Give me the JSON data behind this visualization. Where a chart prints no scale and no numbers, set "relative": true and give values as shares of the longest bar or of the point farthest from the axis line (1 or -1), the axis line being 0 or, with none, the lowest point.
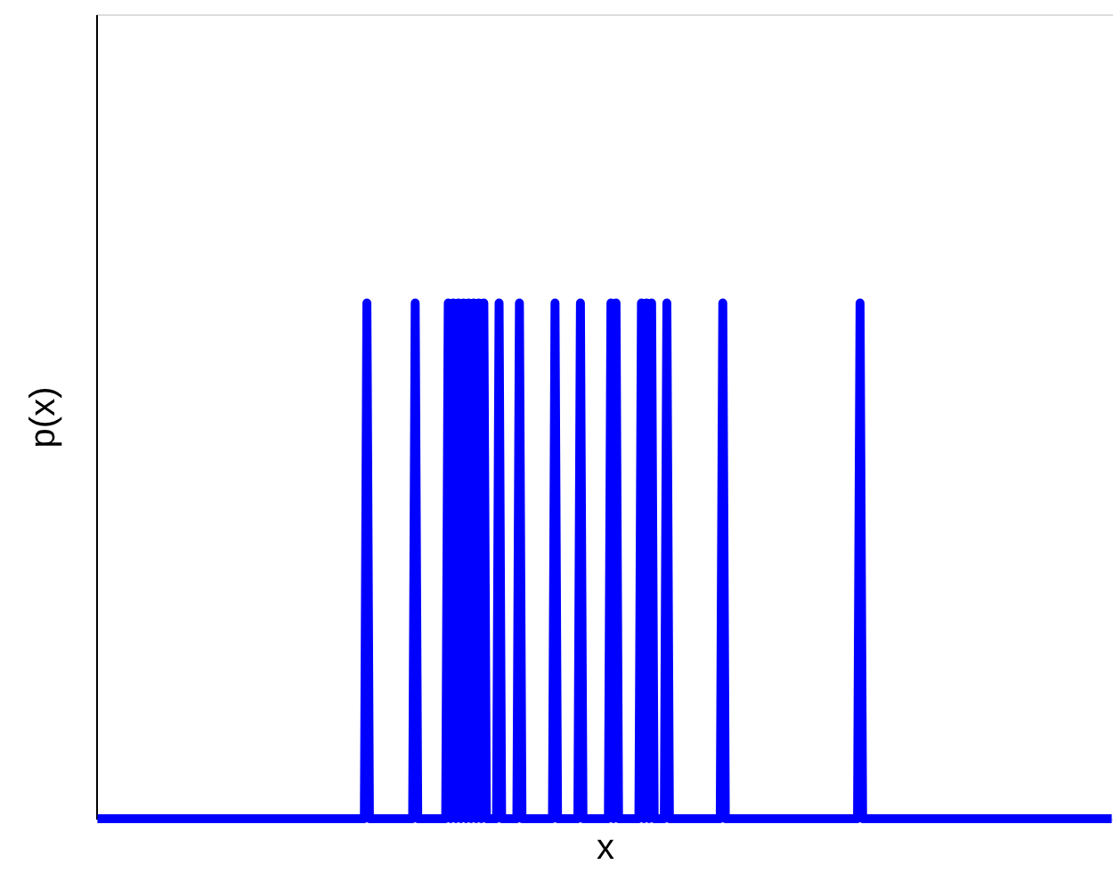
{
  "chart_data": {
    "type": "line",
    "relative": true,
    "xlabel": "x",
    "ylabel": "p(x)",
    "grid": false,
    "marker": "none",
    "line_style": "solid",
    "categories": [
      null,
      null,
      null,
      null,
      null,
      null,
      null,
      null,
      null,
      null,
      null,
      null,
      null,
      null,
      null,
      null,
      null,
      null,
      null,
      null,
      null,
      null,
      null,
      null,
      null,
      null,
      null,
      null,
      null,
      null,
      null,
      null,
      null,
      null,
      null,
      null,
      null,
      null,
      null,
      null,
      null,
      null,
      null,
      null,
      null,
      null,
      null,
      null,
      null,
      null,
      null,
      null,
      null,
      null,
      null,
      null,
      null,
      null,
      null,
      null,
      null,
      null,
      null,
      null,
      null,
      null,
      null,
      null,
      null,
      null,
      null,
      null,
      null,
      null,
      null,
      null,
      null,
      null,
      null,
      null,
      null,
      null,
      null,
      null,
      null,
      null,
      null,
      null,
      null,
      null,
      null,
      null,
      null,
      null,
      null,
      null,
      null,
      null,
      null,
      null,
      null,
      null,
      null,
      null,
      null,
      null,
      null,
      null,
      null,
      null,
      null,
      null,
      null,
      null,
      null,
      null,
      null,
      null,
      null,
      null,
      null,
      null,
      null,
      null,
      null,
      null,
      null,
      null,
      null,
      null,
      null,
      null,
      null,
      null,
      null,
      null,
      null,
      null,
      null,
      null,
      null,
      null,
      null,
      null,
      null,
      null,
      null,
      null,
      null,
      null,
      null,
      null,
      null,
      null,
      null,
      null,
      null,
      null,
      null,
      null,
      null,
      null,
      null,
      null,
      null,
      null,
      null,
      null,
      null,
      null,
      null,
      null,
      null,
      null,
      null,
      null,
      null,
      null,
      null,
      null,
      null,
      null,
      null,
      null,
      null,
      null,
      null,
      null,
      null,
      null,
      null,
      null,
      null,
      null,
      null,
      null,
      null,
      null,
      null,
      null,
      null,
      null,
      null,
      null,
      null,
      null,
      null,
      null,
      null,
      null,
      null,
      null,
      null,
      null,
      null,
      null,
      null,
      null,
      null,
      null,
      null,
      null,
      null,
      null,
      null,
      null,
      null,
      null,
      null,
      null,
      null,
      null,
      null,
      null,
      null,
      null,
      null,
      null,
      null,
      null,
      null,
      null,
      null,
      null,
      null,
      null,
      null,
      null,
      null,
      null,
      null,
      null,
      null,
      null,
      null,
      null,
      null,
      null,
      null,
      null,
      null,
      null,
      null,
      null,
      null,
      null,
      null,
      null,
      null,
      null,
      null,
      null,
      null,
      null,
      null,
      null,
      null,
      null,
      null,
      null,
      null,
      null,
      null,
      null,
      null,
      null,
      null,
      null,
      null,
      null,
      null,
      null,
      null,
      null,
      null,
      null,
      null,
      null,
      null,
      null,
      null,
      null,
      null,
      null,
      null,
      null,
      null,
      null,
      null,
      null,
      null,
      null,
      null,
      null,
      null,
      null,
      null,
      null,
      null,
      null,
      null,
      null,
      null,
      null,
      null,
      null,
      null,
      null,
      null,
      null,
      null,
      null,
      null,
      null,
      null,
      null,
      null,
      null,
      null,
      null,
      null,
      null,
      null,
      null,
      null,
      null,
      null,
      null,
      null,
      null,
      null,
      null,
      null,
      null,
      null,
      null,
      null,
      null,
      null,
      null,
      null,
      null,
      null,
      null,
      null,
      null,
      null,
      null,
      null,
      null,
      null,
      null,
      null,
      null,
      null,
      null,
      null,
      null,
      null,
      null,
      null,
      null,
      null,
      null,
      null,
      null,
      null,
      null,
      null,
      null,
      null,
      null,
      null,
      null,
      null,
      null,
      null,
      null,
      null,
      null
    ],
    "series": [
      {
        "color": "#0000ff",
        "values": [
          0,
          0,
          0,
          0,
          0,
          0,
          0,
          0,
          0,
          0,
          0,
          0,
          0,
          0,
          0,
          0,
          0,
          0,
          0,
          0,
          0,
          0,
          0,
          0,
          0,
          0,
          0,
          0,
          0,
          0,
          0,
          0,
          0,
          0,
          0,
          0,
          0,
          0,
          0,
          0,
          0,
          0,
          0,
          0,
          0,
          0,
          0,
          0,
          0,
          0,
          0,
          0,
          0,
          0,
          0,
          0,
          0,
          0,
          0,
          0,
          0,
          0,
          0,
          0,
          0,
          0,
          0,
          0,
          0,
          0,
          0,
          0,
          0,
          0,
          0,
          0,
          0,
          0,
          0,
          0,
          0,
          0,
          0,
          0,
          0,
          0,
          0,
          0,
          0,
          0,
          0,
          0,
          0,
          0,
          0,
          0,
          0,
          0,
          0,
          0,
          0,
          0,
          0,
          0,
          0,
          0,
          1,
          0,
          0,
          0,
          0,
          0,
          0,
          0,
          0,
          0,
          0,
          0,
          0,
          0,
          0,
          0,
          0,
          0,
          0,
          1,
          0,
          0,
          0,
          0,
          0,
          0,
          0,
          0,
          0,
          0,
          0,
          0,
          1,
          0,
          1,
          0,
          1,
          0,
          1,
          0,
          1,
          0,
          1,
          0,
          1,
          0,
          1,
          0,
          0,
          0,
          0,
          0,
          1,
          0,
          0,
          0,
          0,
          0,
          0,
          0,
          1,
          0,
          0,
          0,
          0,
          0,
          0,
          0,
          0,
          0,
          0,
          0,
          0,
          0,
          1,
          0,
          0,
          0,
          0,
          0,
          0,
          0,
          0,
          0,
          1,
          0,
          0,
          0,
          0,
          0,
          0,
          0,
          0,
          0,
          0,
          0,
          1,
          0,
          1,
          0,
          0,
          0,
          0,
          0,
          0,
          0,
          0,
          0,
          1,
          0,
          1,
          0,
          1,
          0,
          0,
          0,
          0,
          0,
          1,
          0,
          0,
          0,
          0,
          0,
          0,
          0,
          0,
          0,
          0,
          0,
          0,
          0,
          0,
          0,
          0,
          0,
          0,
          0,
          0,
          0,
          1,
          0,
          0,
          0,
          0,
          0,
          0,
          0,
          0,
          0,
          0,
          0,
          0,
          0,
          0,
          0,
          0,
          0,
          0,
          0,
          0,
          0,
          0,
          0,
          0,
          0,
          0,
          0,
          0,
          0,
          0,
          0,
          0,
          0,
          0,
          0,
          0,
          0,
          0,
          0,
          0,
          0,
          0,
          0,
          0,
          0,
          0,
          0,
          0,
          0,
          0,
          0,
          0,
          0,
          1,
          0,
          0,
          0,
          0,
          0,
          0,
          0,
          0,
          0,
          0,
          0,
          0,
          0,
          0,
          0,
          0,
          0,
          0,
          0,
          0,
          0,
          0,
          0,
          0,
          0,
          0,
          0,
          0,
          0,
          0,
          0,
          0,
          0,
          0,
          0,
          0,
          0,
          0,
          0,
          0,
          0,
          0,
          0,
          0,
          0,
          0,
          0,
          0,
          0,
          0,
          0,
          0,
          0,
          0,
          0,
          0,
          0,
          0,
          0,
          0,
          0,
          0,
          0,
          0,
          0,
          0,
          0,
          0,
          0,
          0,
          0,
          0,
          0,
          0,
          0,
          0,
          0,
          0,
          0,
          0,
          0,
          0,
          0,
          0,
          0,
          0,
          0,
          0,
          0,
          0,
          0,
          0,
          0,
          0,
          0,
          0,
          0,
          0,
          0
        ]
      }
    ]
  }
}
